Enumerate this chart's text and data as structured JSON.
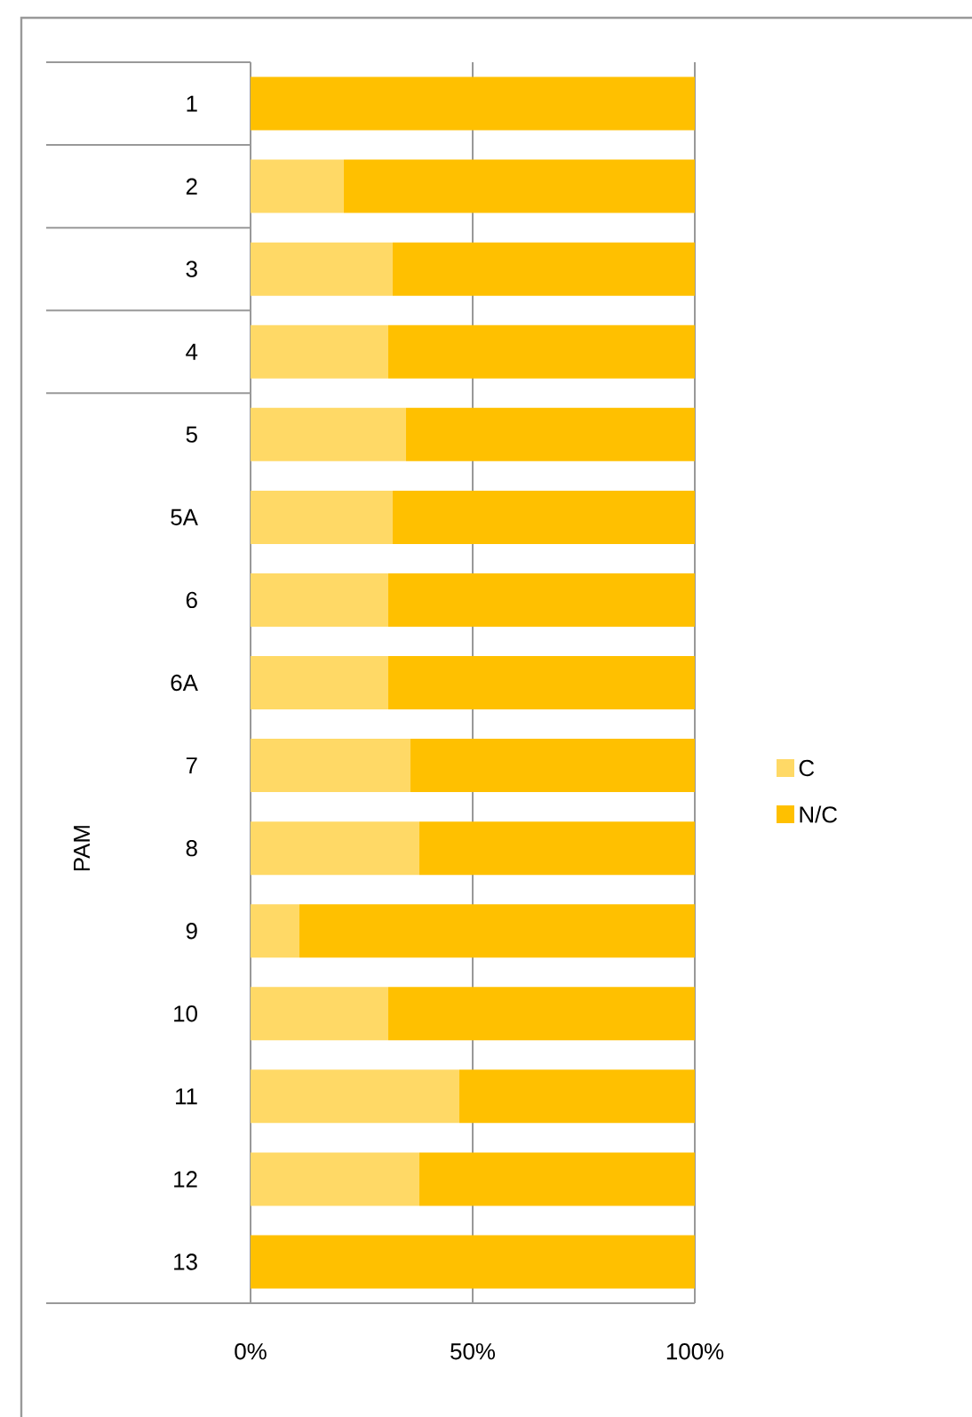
{
  "chart_data": {
    "type": "bar",
    "orientation": "horizontal",
    "stacked": true,
    "ylabel": "PAM",
    "categories": [
      "1",
      "2",
      "3",
      "4",
      "5",
      "5A",
      "6",
      "6A",
      "7",
      "8",
      "9",
      "10",
      "11",
      "12",
      "13"
    ],
    "series": [
      {
        "name": "C",
        "color": "#ffd966",
        "values": [
          0,
          21,
          32,
          31,
          35,
          32,
          31,
          31,
          36,
          38,
          11,
          31,
          47,
          38,
          0
        ]
      },
      {
        "name": "N/C",
        "color": "#ffc000",
        "values": [
          100,
          79,
          68,
          69,
          65,
          68,
          69,
          69,
          64,
          62,
          89,
          69,
          53,
          62,
          100
        ]
      }
    ],
    "xlim": [
      0,
      100
    ],
    "xticks": [
      {
        "value": 0,
        "label": "0%"
      },
      {
        "value": 50,
        "label": "50%"
      },
      {
        "value": 100,
        "label": "100%"
      }
    ],
    "grid": "x",
    "legend": "right"
  }
}
